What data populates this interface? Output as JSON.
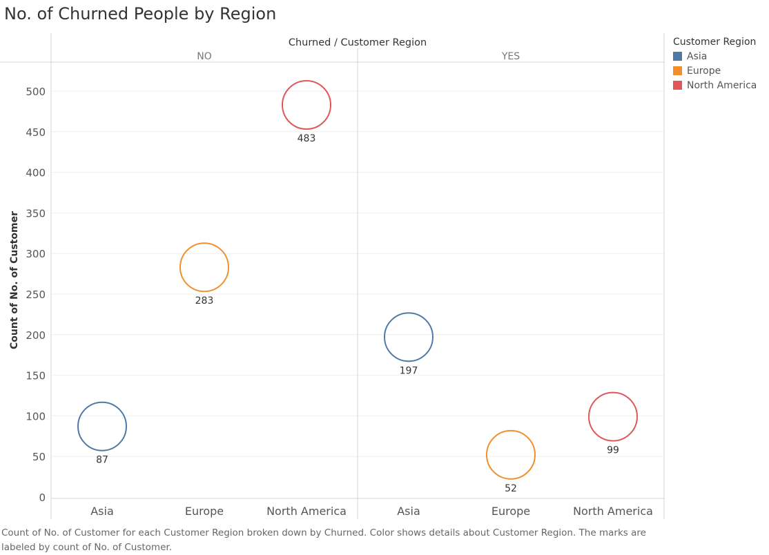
{
  "title": "No. of Churned People by Region",
  "legend": {
    "title": "Customer Region",
    "items": [
      {
        "label": "Asia",
        "color": "#4e79a7"
      },
      {
        "label": "Europe",
        "color": "#f28e2b"
      },
      {
        "label": "North America",
        "color": "#e15759"
      }
    ]
  },
  "caption": "Count of No. of Customer for each Customer Region broken down by Churned.  Color shows details about Customer Region.  The marks are labeled by count of No. of Customer.",
  "chart_data": {
    "type": "scatter",
    "title": "No. of Churned People by Region",
    "header": "Churned  /  Customer Region",
    "ylabel": "Count of No. of Customer",
    "xlabel": "",
    "ylim": [
      0,
      500
    ],
    "yticks": [
      0,
      50,
      100,
      150,
      200,
      250,
      300,
      350,
      400,
      450,
      500
    ],
    "grid": true,
    "panels": [
      {
        "name": "NO",
        "categories": [
          "Asia",
          "Europe",
          "North America"
        ],
        "values": [
          87,
          283,
          483
        ],
        "colors": [
          "#4e79a7",
          "#f28e2b",
          "#e15759"
        ]
      },
      {
        "name": "YES",
        "categories": [
          "Asia",
          "Europe",
          "North America"
        ],
        "values": [
          197,
          52,
          99
        ],
        "colors": [
          "#4e79a7",
          "#f28e2b",
          "#e15759"
        ]
      }
    ]
  }
}
